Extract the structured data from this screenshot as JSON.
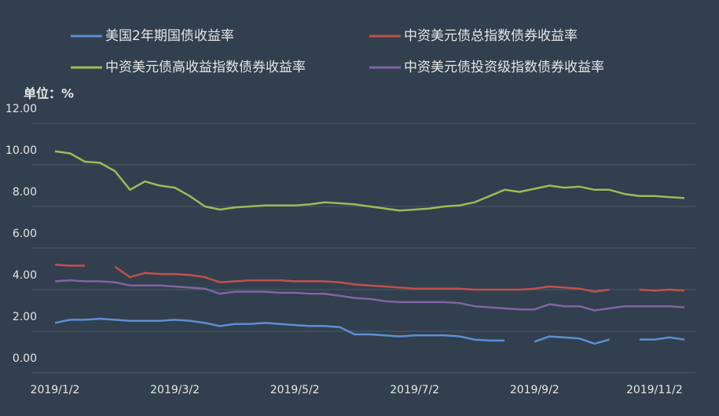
{
  "chart_data": {
    "type": "line",
    "y_label": "单位：%",
    "categories": [
      "2019/1/2",
      null,
      null,
      null,
      null,
      null,
      null,
      null,
      "2019/3/2",
      null,
      null,
      null,
      null,
      null,
      null,
      null,
      "2019/5/2",
      null,
      null,
      null,
      null,
      null,
      null,
      null,
      "2019/7/2",
      null,
      null,
      null,
      null,
      null,
      null,
      null,
      "2019/9/2",
      null,
      null,
      null,
      null,
      null,
      null,
      null,
      "2019/11/2",
      null,
      null
    ],
    "series": [
      {
        "name": "美国2年期国债收益率",
        "color": "#5b8fd4",
        "values": [
          2.4,
          2.55,
          2.55,
          2.6,
          2.55,
          2.5,
          2.5,
          2.5,
          2.55,
          2.5,
          2.4,
          2.25,
          2.35,
          2.35,
          2.4,
          2.35,
          2.3,
          2.25,
          2.25,
          2.2,
          1.85,
          1.85,
          1.8,
          1.75,
          1.8,
          1.8,
          1.8,
          1.75,
          1.6,
          1.55,
          1.55,
          null,
          1.5,
          1.75,
          1.7,
          1.65,
          1.4,
          1.6,
          null,
          1.6,
          1.6,
          1.7,
          1.6
        ]
      },
      {
        "name": "中资美元债总指数债券收益率",
        "color": "#c0504d",
        "values": [
          5.2,
          5.15,
          5.15,
          null,
          5.1,
          4.6,
          4.8,
          4.75,
          4.75,
          4.7,
          4.6,
          4.35,
          4.4,
          4.45,
          4.45,
          4.45,
          4.4,
          4.4,
          4.4,
          4.35,
          4.25,
          4.2,
          4.15,
          4.1,
          4.05,
          4.05,
          4.05,
          4.05,
          4.0,
          4.0,
          4.0,
          4.0,
          4.05,
          4.15,
          4.1,
          4.05,
          3.9,
          4.0,
          null,
          4.0,
          3.95,
          4.0,
          3.95
        ]
      },
      {
        "name": "中资美元债高收益指数债券收益率",
        "color": "#9bbb59",
        "values": [
          10.65,
          10.55,
          10.15,
          10.1,
          9.7,
          8.8,
          9.2,
          9.0,
          8.9,
          8.5,
          8.0,
          7.85,
          7.95,
          8.0,
          8.05,
          8.05,
          8.05,
          8.1,
          8.2,
          8.15,
          8.1,
          8.0,
          7.9,
          7.8,
          7.85,
          7.9,
          8.0,
          8.05,
          8.2,
          8.5,
          8.8,
          8.7,
          8.85,
          9.0,
          8.9,
          8.95,
          8.8,
          8.8,
          8.6,
          8.5,
          8.5,
          8.45,
          8.4
        ]
      },
      {
        "name": "中资美元债投资级指数债券收益率",
        "color": "#8064a2",
        "values": [
          4.4,
          4.45,
          4.4,
          4.4,
          4.35,
          4.2,
          4.2,
          4.2,
          4.15,
          4.1,
          4.05,
          3.8,
          3.9,
          3.9,
          3.9,
          3.85,
          3.85,
          3.8,
          3.8,
          3.7,
          3.6,
          3.55,
          3.45,
          3.4,
          3.4,
          3.4,
          3.4,
          3.35,
          3.2,
          3.15,
          3.1,
          3.05,
          3.05,
          3.3,
          3.2,
          3.2,
          3.0,
          3.1,
          3.2,
          3.2,
          3.2,
          3.2,
          3.15
        ]
      }
    ],
    "ylim": [
      0,
      12
    ],
    "yticks": [
      {
        "value": 0,
        "label": "0.00"
      },
      {
        "value": 2,
        "label": "2.00"
      },
      {
        "value": 4,
        "label": "4.00"
      },
      {
        "value": 6,
        "label": "6.00"
      },
      {
        "value": 8,
        "label": "8.00"
      },
      {
        "value": 10,
        "label": "10.00"
      },
      {
        "value": 12,
        "label": "12.00"
      }
    ],
    "grid": true
  }
}
